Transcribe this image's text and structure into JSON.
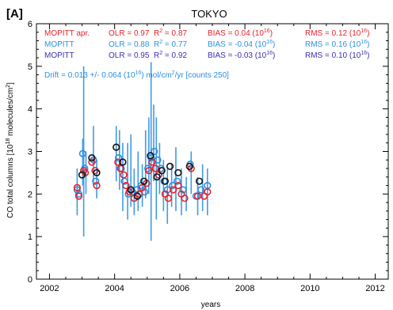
{
  "chart_data": {
    "type": "scatter",
    "panel_label": "[A]",
    "title": "TOKYO",
    "xlabel": "years",
    "ylabel_main": "CO total columns [10",
    "ylabel_sup": "18",
    "ylabel_units": " molecules/cm",
    "ylabel_sup2": "2",
    "ylabel_close": "]",
    "xlim": [
      2001.6,
      2012.4
    ],
    "ylim": [
      0,
      6
    ],
    "xticks": [
      "2002",
      "2004",
      "2006",
      "2008",
      "2010",
      "2012"
    ],
    "yticks": [
      "0",
      "1",
      "2",
      "3",
      "4",
      "5",
      "6"
    ],
    "stats": [
      {
        "name": "MOPITT apr.",
        "color": "#e8232a",
        "olr": "OLR = 0.97",
        "r2_a": "R",
        "r2_b": " = 0.87",
        "bias": "BIAS = 0.04 (10",
        "bias_close": ")",
        "rms": "RMS = 0.12 (10",
        "rms_close": ")"
      },
      {
        "name": "MOPITT",
        "color": "#2b8fe0",
        "olr": "OLR = 0.88",
        "r2_a": "R",
        "r2_b": " = 0.77",
        "bias": "BIAS = -0.04 (10",
        "bias_close": ")",
        "rms": "RMS = 0.16 (10",
        "rms_close": ")"
      },
      {
        "name": "MOPITT",
        "color": "#3a2fb0",
        "olr": "OLR = 0.95",
        "r2_a": "R",
        "r2_b": " = 0.92",
        "bias": "BIAS = -0.03 (10",
        "bias_close": ")",
        "rms": "RMS = 0.10 (10",
        "rms_close": ")"
      }
    ],
    "sup2": "2",
    "sup16": "16",
    "drift": "Drift = 0.013 +/- 0.064 (10",
    "drift_tail": ") mol/cm",
    "drift_tail2": "/yr [counts 250]",
    "colors": {
      "apriori": "#e8232a",
      "mopitt": "#2b8fe0",
      "errbar": "#3f9be6",
      "ground": "#111111"
    },
    "series": [
      {
        "name": "ground",
        "points": [
          [
            2003.0,
            2.45
          ],
          [
            2003.3,
            2.85
          ],
          [
            2003.45,
            2.5
          ],
          [
            2004.05,
            3.1
          ],
          [
            2004.25,
            2.75
          ],
          [
            2004.5,
            2.1
          ],
          [
            2004.7,
            1.95
          ],
          [
            2004.9,
            2.3
          ],
          [
            2005.1,
            2.9
          ],
          [
            2005.3,
            2.4
          ],
          [
            2005.45,
            2.55
          ],
          [
            2005.55,
            2.3
          ],
          [
            2005.7,
            2.65
          ],
          [
            2005.95,
            2.5
          ],
          [
            2006.3,
            2.65
          ],
          [
            2006.6,
            2.3
          ]
        ]
      },
      {
        "name": "MOPITT apr.",
        "points": [
          [
            2002.85,
            2.15
          ],
          [
            2002.9,
            1.95
          ],
          [
            2003.05,
            2.55
          ],
          [
            2003.1,
            2.5
          ],
          [
            2003.3,
            2.75
          ],
          [
            2003.4,
            2.55
          ],
          [
            2003.45,
            2.2
          ],
          [
            2004.1,
            2.75
          ],
          [
            2004.18,
            2.6
          ],
          [
            2004.28,
            2.45
          ],
          [
            2004.35,
            2.2
          ],
          [
            2004.45,
            2.05
          ],
          [
            2004.6,
            1.9
          ],
          [
            2004.75,
            2.0
          ],
          [
            2004.85,
            2.15
          ],
          [
            2004.98,
            2.25
          ],
          [
            2005.05,
            2.55
          ],
          [
            2005.15,
            2.75
          ],
          [
            2005.25,
            2.6
          ],
          [
            2005.35,
            2.45
          ],
          [
            2005.55,
            2.0
          ],
          [
            2005.65,
            1.9
          ],
          [
            2005.8,
            2.1
          ],
          [
            2005.95,
            2.2
          ],
          [
            2006.05,
            2.0
          ],
          [
            2006.15,
            1.9
          ],
          [
            2006.35,
            2.6
          ],
          [
            2006.55,
            1.95
          ],
          [
            2006.75,
            1.95
          ],
          [
            2006.85,
            2.05
          ]
        ]
      },
      {
        "name": "MOPITT",
        "points": [
          [
            2002.85,
            2.1
          ],
          [
            2002.9,
            2.0
          ],
          [
            2003.02,
            2.95
          ],
          [
            2003.08,
            2.6
          ],
          [
            2003.35,
            2.8
          ],
          [
            2003.42,
            2.3
          ],
          [
            2004.12,
            2.85
          ],
          [
            2004.2,
            2.6
          ],
          [
            2004.3,
            2.3
          ],
          [
            2004.42,
            2.0
          ],
          [
            2004.55,
            2.05
          ],
          [
            2004.68,
            2.1
          ],
          [
            2004.82,
            2.2
          ],
          [
            2004.92,
            2.05
          ],
          [
            2005.02,
            2.6
          ],
          [
            2005.12,
            2.85
          ],
          [
            2005.22,
            3.0
          ],
          [
            2005.32,
            2.8
          ],
          [
            2005.42,
            2.6
          ],
          [
            2005.52,
            2.3
          ],
          [
            2005.62,
            2.1
          ],
          [
            2005.78,
            2.2
          ],
          [
            2005.92,
            2.3
          ],
          [
            2006.1,
            2.1
          ],
          [
            2006.32,
            2.7
          ],
          [
            2006.5,
            1.95
          ],
          [
            2006.65,
            2.1
          ],
          [
            2006.85,
            2.2
          ]
        ]
      },
      {
        "name": "MOPITT error bars",
        "bars": [
          [
            2002.85,
            1.5,
            2.6
          ],
          [
            2003.02,
            2.2,
            3.3
          ],
          [
            2003.05,
            1.0,
            5.0
          ],
          [
            2003.12,
            2.0,
            3.0
          ],
          [
            2003.35,
            2.2,
            3.6
          ],
          [
            2003.45,
            1.9,
            2.8
          ],
          [
            2004.05,
            2.3,
            3.6
          ],
          [
            2004.15,
            2.1,
            3.5
          ],
          [
            2004.25,
            1.6,
            3.2
          ],
          [
            2004.4,
            1.4,
            3.2
          ],
          [
            2004.5,
            1.7,
            3.4
          ],
          [
            2004.6,
            1.5,
            2.6
          ],
          [
            2004.72,
            1.6,
            3.0
          ],
          [
            2004.85,
            1.7,
            2.7
          ],
          [
            2004.95,
            1.9,
            3.5
          ],
          [
            2005.05,
            2.0,
            3.8
          ],
          [
            2005.12,
            0.9,
            5.1
          ],
          [
            2005.2,
            2.3,
            4.1
          ],
          [
            2005.28,
            1.4,
            3.8
          ],
          [
            2005.38,
            2.0,
            3.2
          ],
          [
            2005.5,
            1.6,
            2.8
          ],
          [
            2005.62,
            1.3,
            2.6
          ],
          [
            2005.75,
            1.7,
            2.7
          ],
          [
            2005.88,
            1.6,
            3.1
          ],
          [
            2006.05,
            1.5,
            2.6
          ],
          [
            2006.2,
            1.6,
            2.4
          ],
          [
            2006.35,
            2.0,
            3.0
          ],
          [
            2006.55,
            1.5,
            2.4
          ],
          [
            2006.7,
            1.6,
            2.7
          ],
          [
            2006.85,
            1.5,
            2.6
          ]
        ]
      }
    ]
  }
}
